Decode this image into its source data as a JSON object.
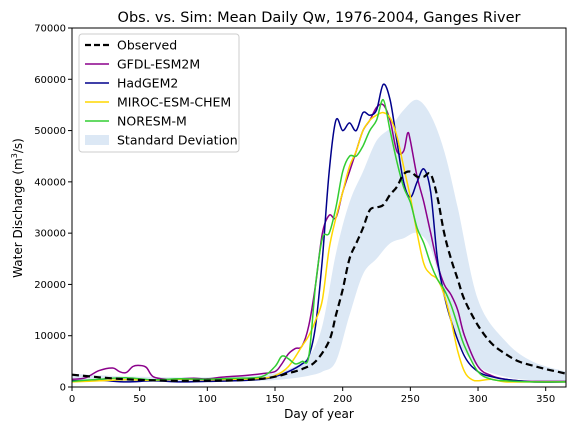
{
  "chart_data": {
    "type": "line",
    "title": "Obs. vs. Sim: Mean Daily Qw, 1976-2004, Ganges River",
    "xlabel": "Day of year",
    "ylabel_main": "Water Discharge (m",
    "ylabel_sup": "3",
    "ylabel_end": "/s)",
    "xlim": [
      0,
      365
    ],
    "ylim": [
      0,
      70000
    ],
    "xticks": [
      0,
      50,
      100,
      150,
      200,
      250,
      300,
      350
    ],
    "yticks": [
      0,
      10000,
      20000,
      30000,
      40000,
      50000,
      60000,
      70000
    ],
    "grid": false,
    "legend_position": "top-left",
    "std_band": {
      "name": "Standard Deviation",
      "color": "#dce8f5",
      "x": [
        0,
        20,
        50,
        100,
        140,
        160,
        175,
        185,
        195,
        205,
        215,
        225,
        235,
        245,
        255,
        265,
        275,
        285,
        300,
        320,
        340,
        365
      ],
      "upper": [
        2600,
        2300,
        2000,
        1900,
        2300,
        3500,
        6000,
        12000,
        26000,
        36000,
        42000,
        48000,
        50500,
        54000,
        56000,
        53000,
        46000,
        35000,
        17000,
        9000,
        5000,
        3000
      ],
      "lower": [
        1400,
        1200,
        1000,
        1000,
        1200,
        1600,
        2200,
        3000,
        5000,
        14000,
        22000,
        25000,
        28000,
        29000,
        30000,
        27000,
        17000,
        9000,
        4000,
        2000,
        1300,
        1000
      ]
    },
    "series": [
      {
        "name": "Observed",
        "color": "#000000",
        "dashed": true,
        "x": [
          0,
          20,
          40,
          60,
          80,
          100,
          120,
          140,
          150,
          160,
          170,
          180,
          190,
          195,
          200,
          205,
          210,
          215,
          220,
          225,
          230,
          235,
          240,
          245,
          250,
          255,
          260,
          265,
          270,
          275,
          280,
          285,
          290,
          300,
          310,
          320,
          330,
          340,
          350,
          360,
          365
        ],
        "y": [
          2400,
          1900,
          1500,
          1300,
          1200,
          1250,
          1300,
          1600,
          2000,
          2700,
          3500,
          5000,
          9000,
          14000,
          19000,
          25000,
          28000,
          31000,
          34500,
          35000,
          35500,
          37500,
          39000,
          41500,
          42000,
          41000,
          41000,
          41500,
          37000,
          30000,
          25000,
          21000,
          17000,
          12000,
          8500,
          6500,
          5000,
          4200,
          3500,
          2900,
          2600
        ]
      },
      {
        "name": "GFDL-ESM2M",
        "color": "#8b008b",
        "dashed": false,
        "x": [
          0,
          10,
          20,
          30,
          35,
          40,
          45,
          50,
          55,
          60,
          70,
          80,
          90,
          100,
          110,
          120,
          130,
          140,
          150,
          155,
          160,
          165,
          170,
          175,
          180,
          185,
          190,
          195,
          200,
          205,
          210,
          215,
          220,
          225,
          230,
          235,
          240,
          245,
          248,
          250,
          255,
          260,
          265,
          270,
          275,
          280,
          285,
          290,
          300,
          310,
          320,
          330,
          340,
          350,
          365
        ],
        "y": [
          1500,
          1800,
          3200,
          3700,
          3000,
          2800,
          4000,
          4200,
          3800,
          2000,
          1500,
          1600,
          1700,
          1600,
          1900,
          2100,
          2300,
          2600,
          3000,
          4500,
          6500,
          7500,
          8000,
          12000,
          20000,
          30000,
          33500,
          33000,
          38000,
          42000,
          46000,
          50000,
          52000,
          54500,
          55000,
          52000,
          46000,
          46000,
          49500,
          48000,
          41000,
          36000,
          30000,
          24000,
          20000,
          18000,
          15000,
          10000,
          4000,
          2200,
          1500,
          1200,
          1100,
          1100,
          1100
        ]
      },
      {
        "name": "HadGEM2",
        "color": "#00008b",
        "dashed": false,
        "x": [
          0,
          20,
          40,
          60,
          80,
          100,
          120,
          140,
          150,
          160,
          170,
          175,
          180,
          185,
          190,
          195,
          200,
          205,
          210,
          215,
          220,
          225,
          230,
          235,
          240,
          245,
          250,
          255,
          260,
          265,
          270,
          275,
          280,
          290,
          300,
          310,
          320,
          340,
          365
        ],
        "y": [
          1200,
          1300,
          1000,
          1200,
          1000,
          1100,
          1200,
          1500,
          2000,
          3000,
          4500,
          6000,
          12000,
          25000,
          42000,
          52000,
          50000,
          51500,
          50000,
          53500,
          53000,
          54000,
          59000,
          56000,
          48000,
          40000,
          37000,
          40000,
          42500,
          38000,
          25000,
          18000,
          13000,
          6000,
          3000,
          2000,
          1500,
          1000,
          1000
        ]
      },
      {
        "name": "MIROC-ESM-CHEM",
        "color": "#ffd700",
        "dashed": false,
        "x": [
          0,
          20,
          40,
          60,
          80,
          100,
          120,
          140,
          150,
          160,
          170,
          175,
          180,
          185,
          190,
          195,
          200,
          205,
          210,
          215,
          220,
          225,
          230,
          235,
          240,
          245,
          250,
          255,
          260,
          265,
          270,
          275,
          280,
          285,
          290,
          295,
          300,
          310,
          320,
          340,
          365
        ],
        "y": [
          1000,
          1200,
          1400,
          1300,
          1500,
          1400,
          1500,
          1700,
          2200,
          4000,
          8000,
          10000,
          13000,
          17000,
          27000,
          33000,
          38000,
          43000,
          46000,
          50000,
          52000,
          53000,
          53500,
          52500,
          49000,
          43000,
          37000,
          30000,
          24000,
          22000,
          21000,
          18000,
          13000,
          7000,
          3000,
          1500,
          1200,
          1500,
          1000,
          1000,
          1000
        ]
      },
      {
        "name": "NORESM-M",
        "color": "#32cd32",
        "dashed": false,
        "x": [
          0,
          20,
          40,
          60,
          80,
          100,
          120,
          140,
          150,
          155,
          160,
          165,
          170,
          175,
          180,
          185,
          190,
          195,
          200,
          205,
          210,
          215,
          220,
          225,
          230,
          235,
          240,
          245,
          250,
          255,
          260,
          265,
          270,
          275,
          280,
          285,
          290,
          300,
          310,
          320,
          340,
          365
        ],
        "y": [
          1100,
          1500,
          1800,
          1400,
          1600,
          1500,
          1700,
          2000,
          4000,
          6000,
          5500,
          4500,
          5000,
          6000,
          20000,
          29000,
          30000,
          35000,
          42000,
          45000,
          45000,
          47000,
          50000,
          52000,
          56000,
          50000,
          44000,
          39000,
          36000,
          31000,
          28000,
          24000,
          21000,
          19000,
          16000,
          12000,
          8000,
          3000,
          1500,
          1200,
          1000,
          1000
        ]
      }
    ]
  }
}
